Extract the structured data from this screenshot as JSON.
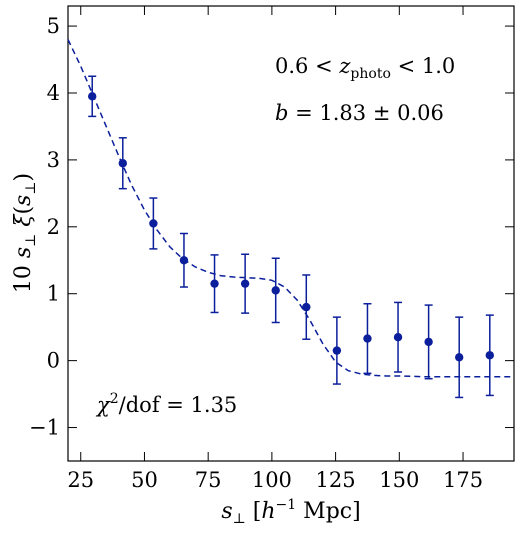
{
  "chart_data": {
    "type": "scatter",
    "xlabel": "s⊥ [h⁻¹ Mpc]",
    "ylabel": "10 s⊥ ξ(s⊥)",
    "xlim": [
      20,
      195
    ],
    "ylim": [
      -1.5,
      5.3
    ],
    "x_ticks": [
      25,
      50,
      75,
      100,
      125,
      150,
      175
    ],
    "y_ticks": [
      -1,
      0,
      1,
      2,
      3,
      4,
      5
    ],
    "grid": false,
    "colors": {
      "points": "#0b1f9c",
      "model": "#0b1f9c",
      "axes": "#000000"
    },
    "annotations": {
      "z_range": "0.6 < z_photo < 1.0",
      "bias": "b = 1.83 ± 0.06",
      "chi2": "χ²/dof = 1.35"
    },
    "series": [
      {
        "type": "errorbar",
        "x": [
          29.5,
          41.5,
          53.5,
          65.5,
          77.5,
          89.5,
          101.5,
          113.5,
          125.5,
          137.5,
          149.5,
          161.5,
          173.5,
          185.5
        ],
        "y": [
          3.95,
          2.95,
          2.05,
          1.5,
          1.15,
          1.15,
          1.05,
          0.8,
          0.15,
          0.33,
          0.35,
          0.28,
          0.05,
          0.08
        ],
        "yerr": [
          0.3,
          0.38,
          0.38,
          0.4,
          0.43,
          0.44,
          0.48,
          0.48,
          0.5,
          0.52,
          0.52,
          0.55,
          0.6,
          0.6
        ]
      },
      {
        "type": "line",
        "style": "dashed",
        "x": [
          20,
          25,
          30,
          35,
          40,
          45,
          50,
          55,
          60,
          65,
          70,
          75,
          80,
          85,
          90,
          95,
          100,
          105,
          110,
          115,
          120,
          125,
          130,
          135,
          140,
          145,
          150,
          160,
          170,
          180,
          195
        ],
        "y": [
          4.8,
          4.4,
          3.95,
          3.5,
          3.05,
          2.62,
          2.25,
          1.95,
          1.7,
          1.52,
          1.4,
          1.32,
          1.27,
          1.25,
          1.24,
          1.23,
          1.2,
          1.1,
          0.9,
          0.6,
          0.25,
          -0.02,
          -0.15,
          -0.2,
          -0.22,
          -0.23,
          -0.23,
          -0.24,
          -0.24,
          -0.24,
          -0.24
        ]
      }
    ]
  }
}
